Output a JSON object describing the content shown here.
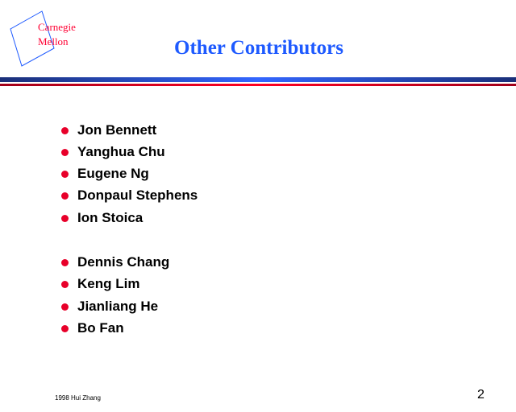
{
  "logo": {
    "line1": "Carnegie",
    "line2": "Mellon",
    "color": "#ff0033"
  },
  "title": "Other Contributors",
  "title_color": "#1e5aff",
  "groups": [
    [
      "Jon Bennett",
      "Yanghua Chu",
      "Eugene Ng",
      "Donpaul Stephens",
      "Ion Stoica"
    ],
    [
      "Dennis Chang",
      "Keng Lim",
      "Jianliang He",
      "Bo Fan"
    ]
  ],
  "bullet_color": "#e8002a",
  "footer": {
    "text": "1998 Hui Zhang",
    "page_number": "2"
  }
}
